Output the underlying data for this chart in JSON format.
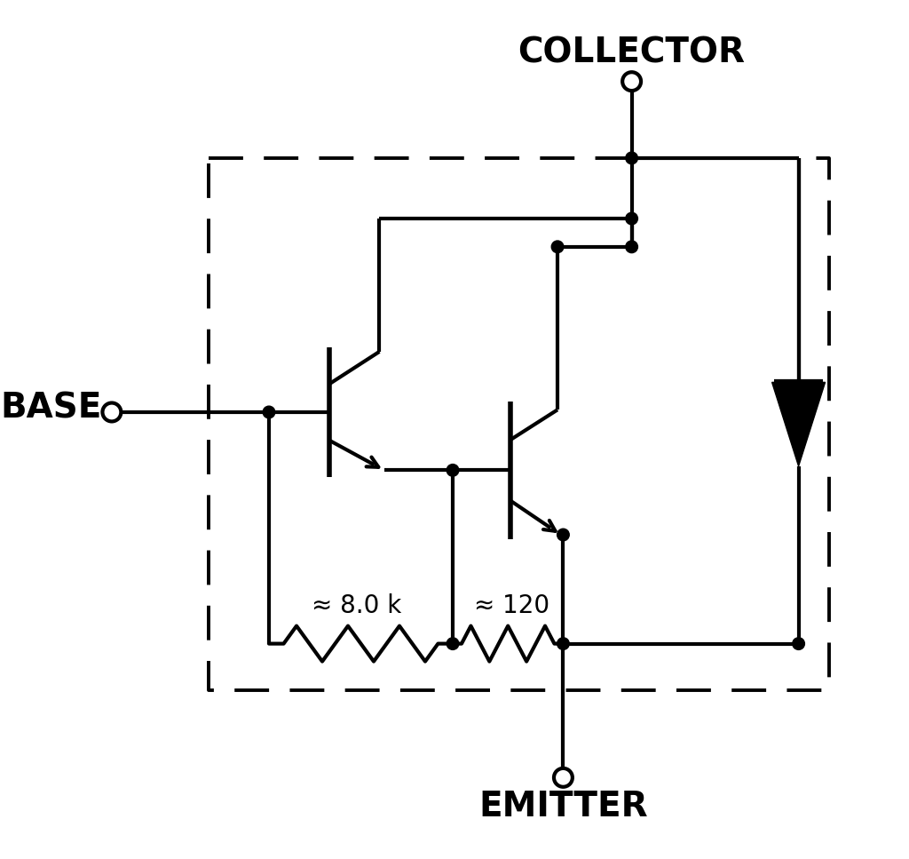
{
  "bg_color": "#ffffff",
  "line_color": "#000000",
  "lw": 3.0,
  "dlw": 2.8,
  "label_collector": "COLLECTOR",
  "label_base": "BASE",
  "label_emitter": "EMITTER",
  "label_r1": "≈ 8.0 k",
  "label_r2": "≈ 120",
  "font_size_terminal": 28,
  "font_size_label": 20,
  "dot_r": 0.075,
  "open_r": 0.115
}
